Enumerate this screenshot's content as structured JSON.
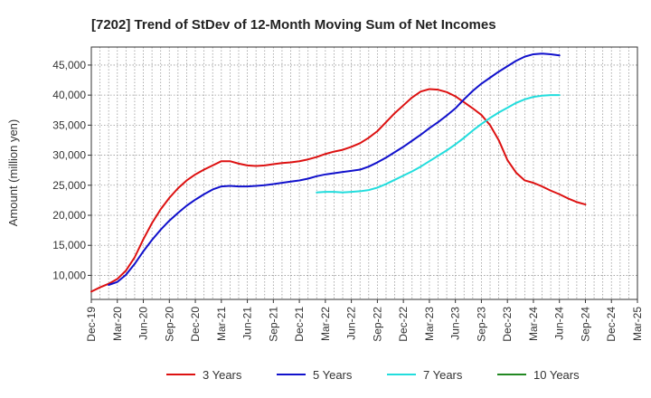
{
  "chart_data": {
    "type": "line",
    "title": "[7202]  Trend of StDev of 12-Month Moving Sum of Net Incomes",
    "ylabel": "Amount (million yen)",
    "xlabel": "",
    "ylim": [
      6000,
      48000
    ],
    "yticks": [
      10000,
      15000,
      20000,
      25000,
      30000,
      35000,
      40000,
      45000
    ],
    "ytick_labels": [
      "10,000",
      "15,000",
      "20,000",
      "25,000",
      "30,000",
      "35,000",
      "40,000",
      "45,000"
    ],
    "xticks": [
      "Dec-19",
      "Mar-20",
      "Jun-20",
      "Sep-20",
      "Dec-20",
      "Mar-21",
      "Jun-21",
      "Sep-21",
      "Dec-21",
      "Mar-22",
      "Jun-22",
      "Sep-22",
      "Dec-22",
      "Mar-23",
      "Jun-23",
      "Sep-23",
      "Dec-23",
      "Mar-24",
      "Jun-24",
      "Sep-24",
      "Dec-24",
      "Mar-25"
    ],
    "grid": true,
    "legend_position": "bottom",
    "series": [
      {
        "name": "3 Years",
        "color": "#dd1111",
        "start": "Dec-19",
        "values": [
          7300,
          8000,
          8600,
          9400,
          10800,
          13000,
          16000,
          18700,
          21000,
          22900,
          24500,
          25800,
          26800,
          27600,
          28300,
          29000,
          29000,
          28600,
          28300,
          28200,
          28300,
          28500,
          28700,
          28800,
          29000,
          29300,
          29700,
          30200,
          30600,
          30900,
          31400,
          32000,
          32900,
          34000,
          35500,
          37000,
          38300,
          39600,
          40600,
          41000,
          40900,
          40500,
          39800,
          38800,
          37800,
          36700,
          35000,
          32500,
          29200,
          27100,
          25800,
          25400,
          24800,
          24100,
          23500,
          22800,
          22200,
          21800
        ]
      },
      {
        "name": "5 Years",
        "color": "#1111cc",
        "start": "Dec-19",
        "values": [
          null,
          null,
          8400,
          8900,
          10100,
          11900,
          14000,
          15900,
          17600,
          19100,
          20400,
          21600,
          22600,
          23500,
          24300,
          24800,
          24900,
          24800,
          24800,
          24900,
          25000,
          25200,
          25400,
          25600,
          25800,
          26100,
          26500,
          26800,
          27000,
          27200,
          27400,
          27600,
          28100,
          28800,
          29600,
          30500,
          31400,
          32400,
          33400,
          34500,
          35500,
          36600,
          37800,
          39300,
          40700,
          41900,
          42900,
          43900,
          44800,
          45700,
          46400,
          46800,
          46900,
          46800,
          46600
        ]
      },
      {
        "name": "7 Years",
        "color": "#22dddd",
        "start": "Dec-19",
        "values": [
          null,
          null,
          null,
          null,
          null,
          null,
          null,
          null,
          null,
          null,
          null,
          null,
          null,
          null,
          null,
          null,
          null,
          null,
          null,
          null,
          null,
          null,
          null,
          null,
          null,
          null,
          23800,
          23900,
          23900,
          23800,
          23900,
          24000,
          24200,
          24600,
          25200,
          25900,
          26600,
          27300,
          28100,
          29000,
          29900,
          30800,
          31800,
          32900,
          34100,
          35200,
          36200,
          37100,
          37900,
          38700,
          39300,
          39700,
          39900,
          40000,
          40000
        ]
      },
      {
        "name": "10 Years",
        "color": "#228822",
        "start": "Dec-19",
        "values": []
      }
    ]
  }
}
